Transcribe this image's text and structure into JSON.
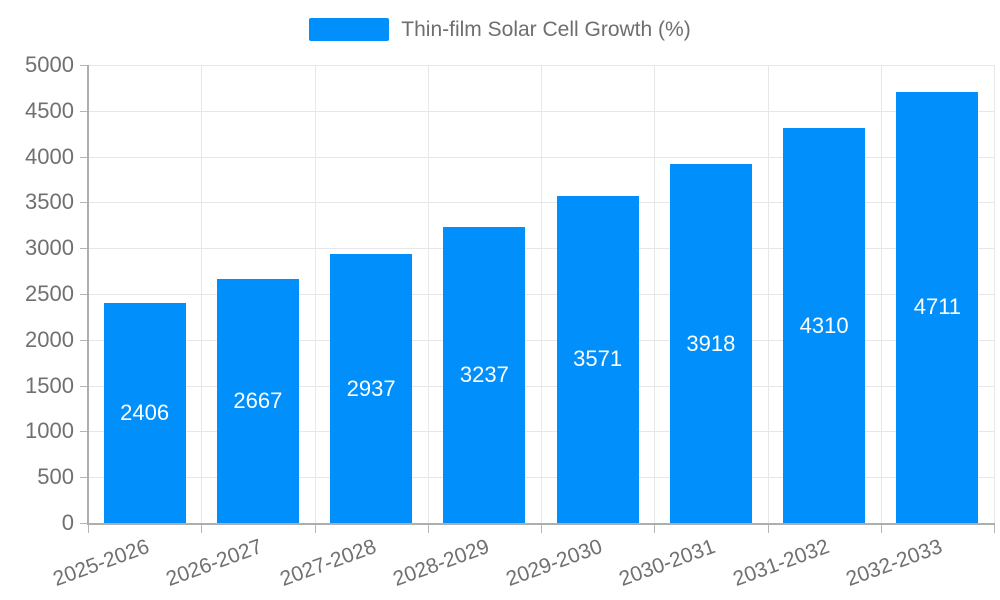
{
  "legend": {
    "label": "Thin-film Solar Cell Growth (%)",
    "marker_color": "#008FFB"
  },
  "chart_data": {
    "type": "bar",
    "title": "",
    "xlabel": "",
    "ylabel": "",
    "categories": [
      "2025-2026",
      "2026-2027",
      "2027-2028",
      "2028-2029",
      "2029-2030",
      "2030-2031",
      "2031-2032",
      "2032-2033"
    ],
    "series": [
      {
        "name": "Thin-film Solar Cell Growth (%)",
        "values": [
          2406,
          2667,
          2937,
          3237,
          3571,
          3918,
          4310,
          4711
        ]
      }
    ],
    "value_labels": [
      "2406",
      "2667",
      "2937",
      "3237",
      "3571",
      "3918",
      "4310",
      "4711"
    ],
    "ylim": [
      0,
      5000
    ],
    "yticks": [
      0,
      500,
      1000,
      1500,
      2000,
      2500,
      3000,
      3500,
      4000,
      4500,
      5000
    ],
    "grid": true,
    "legend_position": "top",
    "bar_color": "#008FFB",
    "value_label_color": "#ffffff",
    "axis_label_color": "#707070",
    "grid_color": "#e7e7e7"
  }
}
